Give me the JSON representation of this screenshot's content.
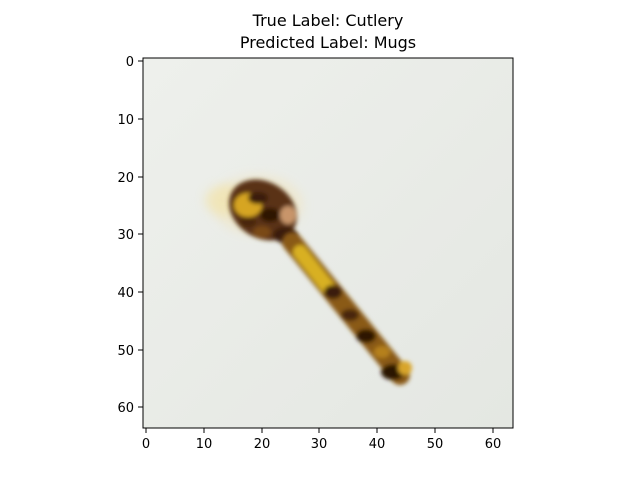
{
  "figure": {
    "title_line1": "True Label: Cutlery",
    "title_line2": "Predicted Label: Mugs"
  },
  "image": {
    "subject": "wooden spoon on light background",
    "background_color": "#e9ebe6",
    "object_color_dark": "#3a1e0d",
    "object_color_mid": "#8a5a1e",
    "object_color_light": "#d3a52a"
  },
  "axes": {
    "x_ticks": [
      "0",
      "10",
      "20",
      "30",
      "40",
      "50",
      "60"
    ],
    "y_ticks": [
      "0",
      "10",
      "20",
      "30",
      "40",
      "50",
      "60"
    ],
    "x_range": [
      -0.5,
      63.5
    ],
    "y_range": [
      63.5,
      -0.5
    ]
  }
}
